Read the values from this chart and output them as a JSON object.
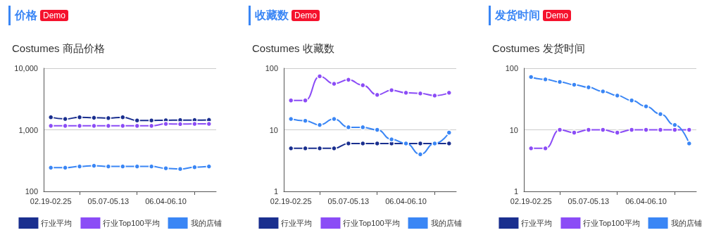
{
  "chart_data": [
    {
      "type": "line",
      "title": "价格",
      "annotations": [
        "Demo"
      ],
      "subtitle": "Costumes 商品价格",
      "categories": [
        "02.19-02.25",
        null,
        null,
        null,
        "05.07-05.13",
        null,
        null,
        null,
        "06.04-06.10",
        null,
        null,
        null
      ],
      "log": "y",
      "ylim": [
        100,
        10000
      ],
      "yticks": [
        100,
        {
          "value": 1000,
          "label": "1,000"
        },
        {
          "value": 10000,
          "label": "10,000"
        }
      ],
      "grid": "y",
      "legend": "bottom",
      "marker": "circle",
      "series": [
        {
          "name": "行业平均",
          "color": "#1a2f8f",
          "values": [
            1600,
            1500,
            1600,
            1570,
            1550,
            1600,
            1420,
            1420,
            1430,
            1440,
            1440,
            1450
          ]
        },
        {
          "name": "行业Top100平均",
          "color": "#8b4cf6",
          "values": [
            1160,
            1160,
            1160,
            1160,
            1160,
            1160,
            1160,
            1160,
            1250,
            1240,
            1250,
            1250
          ]
        },
        {
          "name": "我的店铺",
          "color": "#3a86f5",
          "values": [
            243,
            243,
            254,
            261,
            254,
            254,
            254,
            254,
            237,
            231,
            247,
            254
          ]
        }
      ]
    },
    {
      "type": "line",
      "title": "收藏数",
      "annotations": [
        "Demo"
      ],
      "subtitle": "Costumes 收藏数",
      "categories": [
        "02.19-02.25",
        null,
        null,
        null,
        "05.07-05.13",
        null,
        null,
        null,
        "06.04-06.10",
        null,
        null,
        null
      ],
      "log": "y",
      "ylim": [
        1,
        100
      ],
      "yticks": [
        1,
        10,
        100
      ],
      "grid": "y",
      "legend": "bottom",
      "marker": "circle",
      "series": [
        {
          "name": "行业平均",
          "color": "#1a2f8f",
          "values": [
            5,
            5,
            5,
            5,
            6,
            6,
            6,
            6,
            6,
            6,
            6,
            6
          ]
        },
        {
          "name": "行业Top100平均",
          "color": "#8b4cf6",
          "values": [
            30,
            30,
            74,
            56,
            65,
            53,
            37,
            44,
            40,
            39,
            36,
            40
          ]
        },
        {
          "name": "我的店铺",
          "color": "#3a86f5",
          "values": [
            15,
            14,
            12,
            15,
            11,
            11,
            10,
            7,
            6,
            4,
            6,
            9
          ]
        }
      ]
    },
    {
      "type": "line",
      "title": "发货时间",
      "annotations": [
        "Demo"
      ],
      "subtitle": "Costumes 发货时间",
      "categories": [
        "02.19-02.25",
        null,
        null,
        null,
        "05.07-05.13",
        null,
        null,
        null,
        "06.04-06.10",
        null,
        null,
        null
      ],
      "log": "y",
      "ylim": [
        1,
        100
      ],
      "yticks": [
        1,
        10,
        100
      ],
      "grid": "y",
      "legend": "bottom",
      "marker": "circle",
      "series": [
        {
          "name": "行业平均",
          "color": "#1a2f8f",
          "values": [
            null,
            null,
            null,
            null,
            null,
            null,
            null,
            null,
            null,
            null,
            null,
            null
          ]
        },
        {
          "name": "行业Top100平均",
          "color": "#8b4cf6",
          "values": [
            5,
            5,
            10,
            9,
            10,
            10,
            9,
            10,
            10,
            10,
            10,
            10
          ]
        },
        {
          "name": "我的店铺",
          "color": "#3a86f5",
          "values": [
            72,
            66,
            60,
            54,
            49,
            42,
            36,
            30,
            24,
            18,
            12,
            6
          ]
        }
      ]
    }
  ]
}
